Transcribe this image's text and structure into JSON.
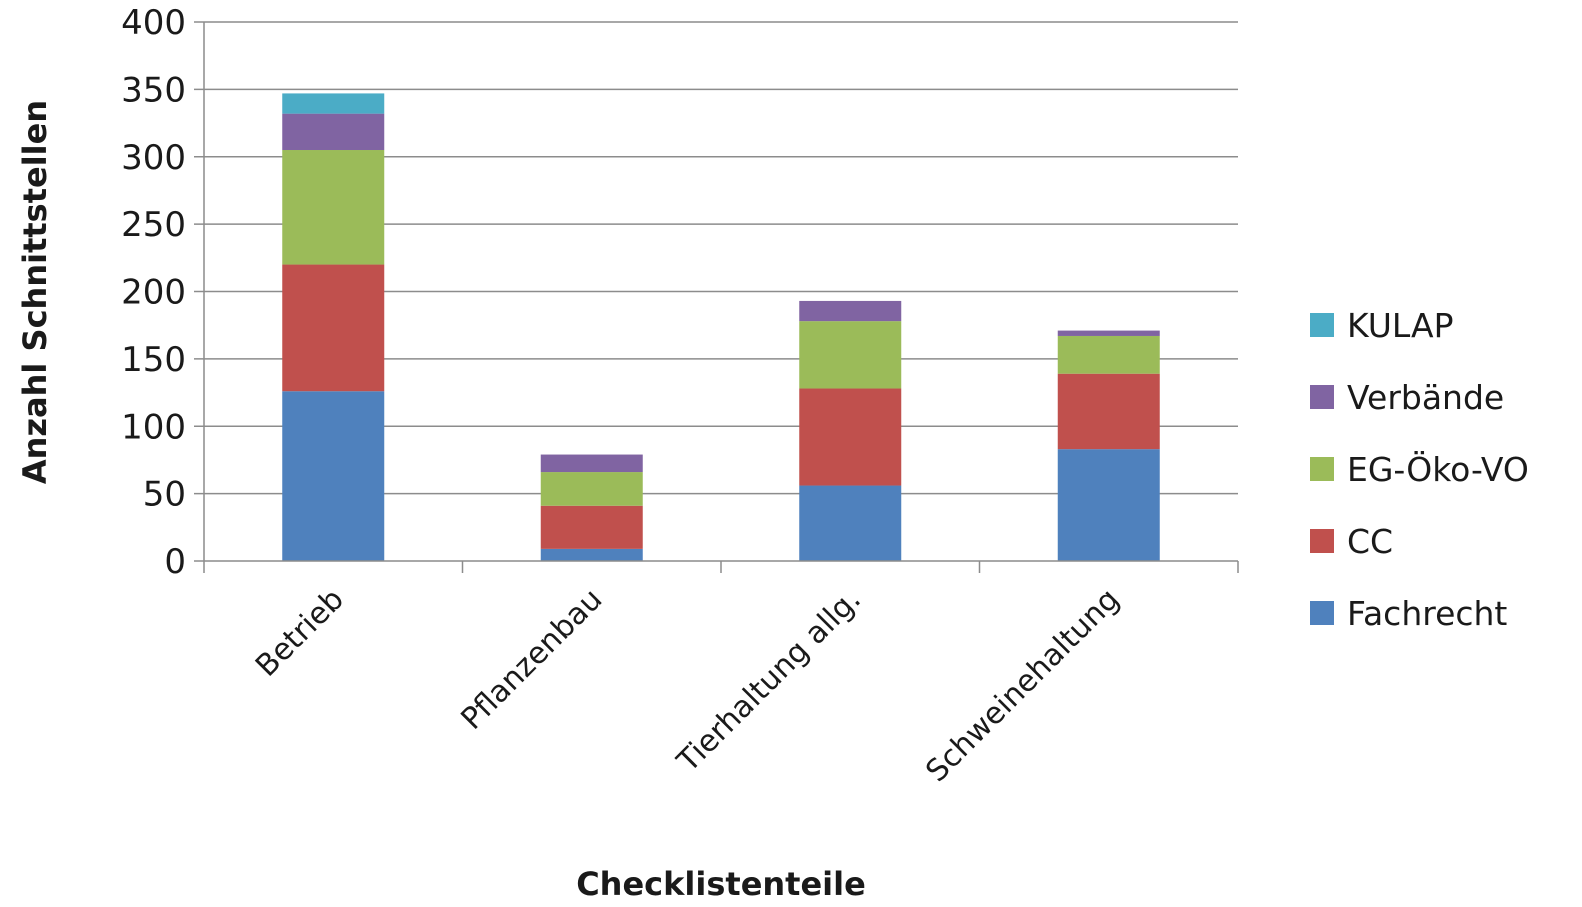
{
  "chart_data": {
    "type": "bar",
    "stacked": true,
    "title": "",
    "xlabel": "Checklistenteile",
    "ylabel": "Anzahl Schnittstellen",
    "ylim": [
      0,
      400
    ],
    "yticks": [
      0,
      50,
      100,
      150,
      200,
      250,
      300,
      350,
      400
    ],
    "grid": true,
    "legend_position": "right",
    "categories": [
      "Betrieb",
      "Pflanzenbau",
      "Tierhaltung allg.",
      "Schweinehaltung"
    ],
    "series": [
      {
        "name": "Fachrecht",
        "color": "#4F81BD",
        "values": [
          126,
          9,
          56,
          83
        ]
      },
      {
        "name": "CC",
        "color": "#C0504D",
        "values": [
          94,
          32,
          72,
          56
        ]
      },
      {
        "name": "EG-Öko-VO",
        "color": "#9BBB59",
        "values": [
          85,
          25,
          50,
          28
        ]
      },
      {
        "name": "Verbände",
        "color": "#8064A2",
        "values": [
          27,
          13,
          15,
          4
        ]
      },
      {
        "name": "KULAP",
        "color": "#4BACC6",
        "values": [
          15,
          0,
          0,
          0
        ]
      }
    ]
  }
}
